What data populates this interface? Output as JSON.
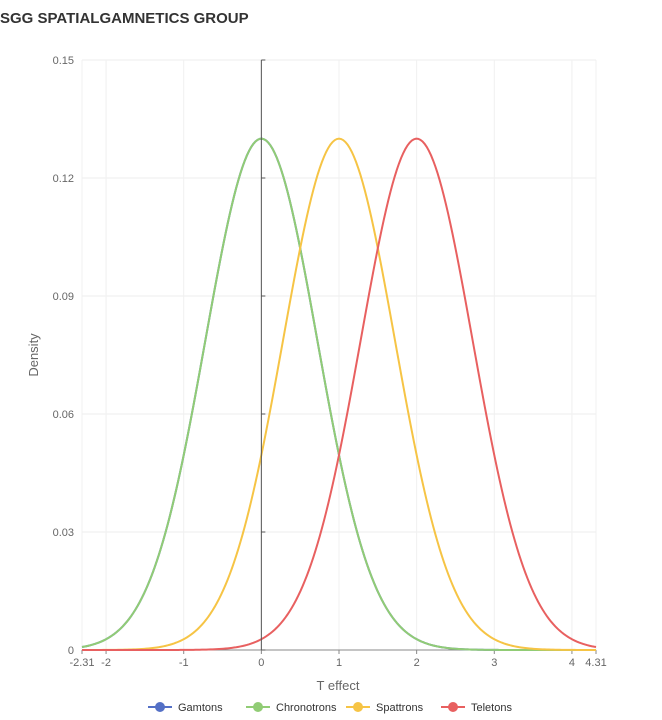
{
  "title": "SGG SPATIALGAMNETICS GROUP",
  "chart_data": {
    "type": "line",
    "title": "SGG SPATIALGAMNETICS GROUP",
    "xlabel": "T effect",
    "ylabel": "Density",
    "xlim": [
      -2.31,
      4.31
    ],
    "ylim": [
      0,
      0.15
    ],
    "x_ticks": [
      -2.31,
      -2,
      -1,
      0,
      1,
      2,
      3,
      4,
      4.31
    ],
    "x_tick_labels": [
      "-2.31",
      "-2",
      "-1",
      "0",
      "1",
      "2",
      "3",
      "4",
      "4.31"
    ],
    "y_ticks": [
      0,
      0.03,
      0.06,
      0.09,
      0.12,
      0.15
    ],
    "y_tick_labels": [
      "0",
      "0.03",
      "0.06",
      "0.09",
      "0.12",
      "0.15"
    ],
    "grid": true,
    "legend": "bottom",
    "series": [
      {
        "name": "Gamtons",
        "color": "#5470c6",
        "distribution": "normal",
        "mean": 0,
        "sd": 0.72,
        "peak": 0.13
      },
      {
        "name": "Chronotrons",
        "color": "#91cc75",
        "distribution": "normal",
        "mean": 0,
        "sd": 0.72,
        "peak": 0.13
      },
      {
        "name": "Spattrons",
        "color": "#f6c445",
        "distribution": "normal",
        "mean": 1,
        "sd": 0.72,
        "peak": 0.13
      },
      {
        "name": "Teletons",
        "color": "#e86060",
        "distribution": "normal",
        "mean": 2,
        "sd": 0.72,
        "peak": 0.13
      }
    ]
  }
}
